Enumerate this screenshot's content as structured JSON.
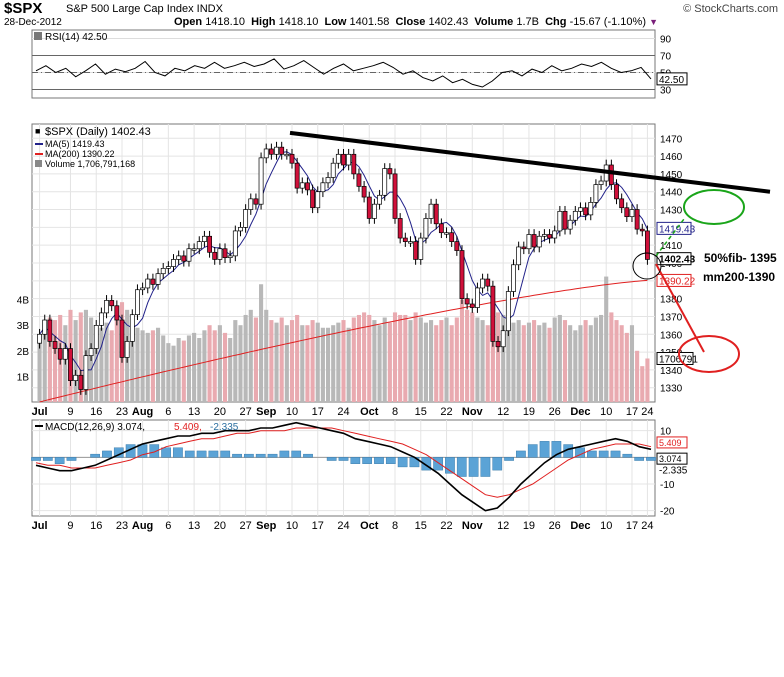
{
  "header": {
    "symbol": "$SPX",
    "name": "S&P 500 Large Cap Index INDX",
    "date": "28-Dec-2012",
    "open_label": "Open",
    "open": "1418.10",
    "high_label": "High",
    "high": "1418.10",
    "low_label": "Low",
    "low": "1401.58",
    "close_label": "Close",
    "close": "1402.43",
    "volume_label": "Volume",
    "volume": "1.7B",
    "chg_label": "Chg",
    "chg": "-15.67 (-1.10%)",
    "credit": "© StockCharts.com"
  },
  "chart_data": [
    {
      "type": "line",
      "name": "RSI panel",
      "legend": "RSI(14) 42.50",
      "ylim": [
        20,
        100
      ],
      "ticks": [
        90,
        70,
        50,
        30
      ],
      "overbought": 70,
      "midline": 50,
      "oversold": 30,
      "last_value_label": "42.50",
      "x": [
        0,
        2,
        4,
        6,
        8,
        10,
        12,
        14,
        16,
        18,
        20,
        22,
        24,
        26,
        28,
        30,
        32,
        34,
        36,
        38,
        40,
        42,
        44,
        46,
        48,
        50,
        52,
        54,
        56,
        58,
        60,
        62,
        64,
        66,
        68,
        70,
        72,
        74,
        76,
        78,
        80,
        82,
        84,
        86,
        88,
        90,
        92,
        94,
        96,
        98,
        100,
        102,
        104,
        106,
        108,
        110,
        112,
        114,
        116,
        118,
        120,
        122,
        124
      ],
      "values": [
        52,
        58,
        50,
        55,
        45,
        52,
        60,
        48,
        54,
        51,
        55,
        63,
        50,
        46,
        55,
        52,
        58,
        55,
        62,
        55,
        58,
        62,
        57,
        60,
        66,
        54,
        58,
        64,
        56,
        48,
        55,
        60,
        52,
        55,
        58,
        62,
        56,
        48,
        52,
        44,
        40,
        46,
        38,
        42,
        36,
        33,
        40,
        50,
        52,
        46,
        54,
        50,
        58,
        52,
        55,
        60,
        57,
        62,
        55,
        50,
        52,
        56,
        42.5
      ]
    },
    {
      "type": "candlestick",
      "name": "Price panel",
      "title": "$SPX (Daily) 1402.43",
      "legend": [
        "$SPX (Daily) 1402.43",
        "MA(5) 1419.43",
        "MA(200) 1390.22",
        "Volume 1,706,791,168"
      ],
      "price_ticks": [
        1470,
        1460,
        1450,
        1440,
        1430,
        1420,
        1410,
        1400,
        1390,
        1380,
        1370,
        1360,
        1350,
        1340,
        1330
      ],
      "price_range": [
        1322,
        1478
      ],
      "volume_ticks": [
        "4B",
        "3B",
        "2B",
        "1B"
      ],
      "volume_range_billion": [
        0,
        5
      ],
      "x_ticks": [
        "Jul",
        "9",
        "16",
        "23",
        "Aug",
        "6",
        "13",
        "20",
        "27",
        "Sep",
        "10",
        "17",
        "24",
        "Oct",
        "8",
        "15",
        "22",
        "Nov",
        "12",
        "19",
        "26",
        "Dec",
        "10",
        "17",
        "24"
      ],
      "closes": [
        1360,
        1368,
        1356,
        1352,
        1346,
        1352,
        1334,
        1337,
        1329,
        1348,
        1352,
        1365,
        1372,
        1379,
        1376,
        1368,
        1347,
        1356,
        1371,
        1385,
        1386,
        1391,
        1388,
        1394,
        1397,
        1398,
        1402,
        1404,
        1401,
        1408,
        1408,
        1412,
        1415,
        1406,
        1402,
        1408,
        1403,
        1404,
        1418,
        1420,
        1430,
        1436,
        1433,
        1459,
        1464,
        1461,
        1465,
        1461,
        1461,
        1456,
        1442,
        1445,
        1441,
        1431,
        1440,
        1445,
        1448,
        1456,
        1461,
        1455,
        1461,
        1450,
        1443,
        1437,
        1425,
        1433,
        1438,
        1453,
        1450,
        1425,
        1414,
        1412,
        1412,
        1402,
        1414,
        1425,
        1433,
        1422,
        1417,
        1417,
        1412,
        1407,
        1380,
        1377,
        1375,
        1386,
        1391,
        1387,
        1356,
        1353,
        1362,
        1384,
        1399,
        1409,
        1408,
        1416,
        1409,
        1415,
        1416,
        1414,
        1418,
        1429,
        1419,
        1424,
        1429,
        1431,
        1427,
        1434,
        1444,
        1446,
        1455,
        1444,
        1436,
        1431,
        1426,
        1430,
        1419,
        1418,
        1402
      ],
      "opens": [
        1355,
        1360,
        1368,
        1356,
        1352,
        1346,
        1352,
        1334,
        1337,
        1329,
        1348,
        1352,
        1365,
        1372,
        1379,
        1376,
        1368,
        1347,
        1356,
        1371,
        1385,
        1386,
        1391,
        1388,
        1394,
        1397,
        1398,
        1402,
        1404,
        1401,
        1408,
        1408,
        1412,
        1415,
        1406,
        1402,
        1408,
        1403,
        1404,
        1418,
        1420,
        1430,
        1436,
        1433,
        1459,
        1464,
        1461,
        1465,
        1461,
        1461,
        1456,
        1442,
        1445,
        1441,
        1431,
        1440,
        1445,
        1448,
        1456,
        1461,
        1455,
        1461,
        1450,
        1443,
        1437,
        1425,
        1433,
        1438,
        1453,
        1450,
        1425,
        1414,
        1412,
        1412,
        1402,
        1414,
        1425,
        1433,
        1422,
        1417,
        1417,
        1412,
        1407,
        1380,
        1377,
        1375,
        1386,
        1391,
        1387,
        1356,
        1353,
        1362,
        1384,
        1399,
        1409,
        1408,
        1416,
        1409,
        1415,
        1416,
        1414,
        1418,
        1429,
        1419,
        1424,
        1429,
        1431,
        1427,
        1434,
        1444,
        1446,
        1455,
        1444,
        1436,
        1431,
        1426,
        1430,
        1419,
        1418
      ],
      "volumes_billion": [
        2.5,
        3.0,
        3.3,
        3.2,
        3.4,
        3.0,
        3.6,
        3.2,
        3.5,
        3.6,
        3.3,
        3.0,
        2.9,
        3.1,
        2.8,
        3.2,
        3.9,
        3.6,
        3.4,
        2.9,
        2.8,
        2.7,
        2.8,
        2.9,
        2.6,
        2.3,
        2.2,
        2.5,
        2.4,
        2.6,
        2.7,
        2.5,
        2.8,
        3.0,
        2.8,
        3.0,
        2.7,
        2.5,
        3.2,
        3.0,
        3.4,
        3.6,
        3.3,
        4.6,
        3.6,
        3.2,
        3.1,
        3.3,
        3.0,
        3.2,
        3.4,
        3.0,
        3.0,
        3.2,
        3.1,
        2.9,
        2.9,
        3.0,
        3.1,
        3.2,
        2.9,
        3.3,
        3.4,
        3.5,
        3.4,
        3.2,
        3.0,
        3.3,
        3.1,
        3.5,
        3.4,
        3.4,
        3.2,
        3.5,
        3.3,
        3.1,
        3.2,
        3.0,
        3.2,
        3.3,
        3.0,
        3.3,
        4.0,
        3.6,
        3.5,
        3.3,
        3.2,
        3.0,
        3.9,
        3.5,
        3.4,
        2.9,
        3.1,
        3.2,
        3.0,
        3.1,
        3.2,
        3.0,
        3.1,
        2.9,
        3.3,
        3.4,
        3.2,
        3.0,
        2.8,
        3.0,
        3.2,
        3.0,
        3.3,
        3.4,
        4.9,
        3.5,
        3.2,
        3.0,
        2.7,
        3.0,
        2.0,
        1.4,
        1.7
      ],
      "ma200_start": 1322,
      "ma200_end": 1390.22,
      "last_price_label": "1402.43",
      "ma5_label": "1419.43",
      "ma200_label": "1390.22",
      "volume_label": "1706791",
      "trendline": {
        "from": [
          1473,
          0.1
        ],
        "to": [
          1440,
          1.0
        ]
      },
      "annotations": [
        "50%fib- 1395",
        "mm200-1390"
      ]
    },
    {
      "type": "line",
      "name": "MACD panel",
      "legend_name": "MACD(12,26,9)",
      "macd_value": "3.074",
      "signal_value": "5.409",
      "hist_value": "-2.335",
      "ylim": [
        -22,
        14
      ],
      "ticks": [
        10,
        0,
        -10,
        -20
      ],
      "labels": [
        "5.409",
        "3.074",
        "-2.335"
      ],
      "macd": [
        -3,
        -4,
        -5,
        -5,
        -4,
        -3,
        -1,
        1,
        3,
        5,
        6,
        7,
        8,
        8,
        9,
        9,
        10,
        10,
        10,
        11,
        11,
        12,
        13,
        12,
        11,
        10,
        9,
        7,
        6,
        5,
        4,
        2,
        0,
        -3,
        -6,
        -10,
        -14,
        -17,
        -20,
        -19,
        -15,
        -10,
        -6,
        -2,
        1,
        3,
        4,
        5,
        6,
        7,
        6,
        4,
        3
      ],
      "signal": [
        -2,
        -3,
        -3,
        -4,
        -4,
        -4,
        -3,
        -2,
        -1,
        1,
        2,
        4,
        5,
        6,
        7,
        7,
        8,
        9,
        9,
        10,
        10,
        10,
        11,
        11,
        11,
        11,
        10,
        9,
        8,
        7,
        6,
        5,
        3,
        1,
        -2,
        -5,
        -8,
        -11,
        -14,
        -15,
        -14,
        -12,
        -10,
        -7,
        -4,
        -1,
        1,
        3,
        4,
        5,
        5,
        5,
        4
      ],
      "x_ticks": [
        "Jul",
        "9",
        "16",
        "23",
        "Aug",
        "6",
        "13",
        "20",
        "27",
        "Sep",
        "10",
        "17",
        "24",
        "Oct",
        "8",
        "15",
        "22",
        "Nov",
        "12",
        "19",
        "26",
        "Dec",
        "10",
        "17",
        "24"
      ]
    }
  ]
}
